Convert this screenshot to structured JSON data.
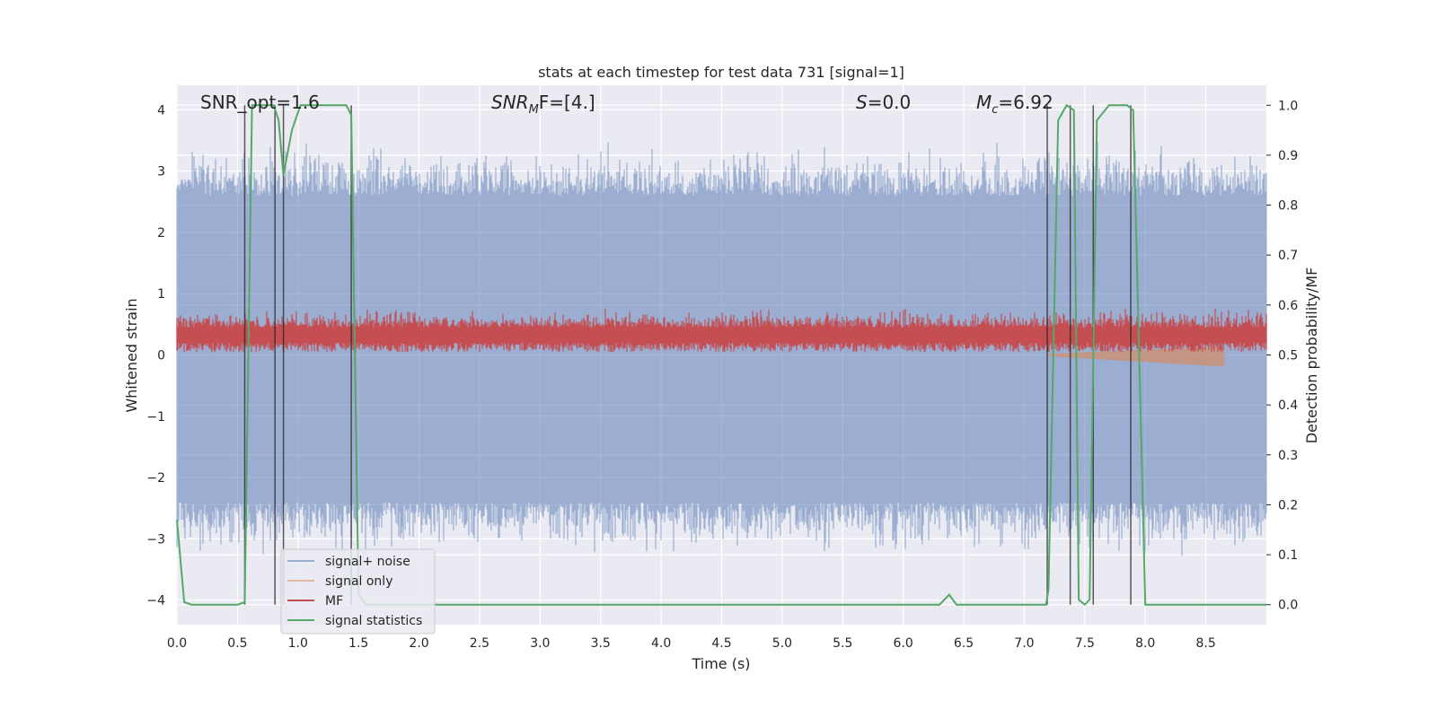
{
  "chart_data": {
    "type": "line",
    "title": "stats at each timestep for test data 731 [signal=1]",
    "xlabel": "Time (s)",
    "ylabel_left": "Whitened strain",
    "ylabel_right": "Detection probability/MF",
    "xlim": [
      0,
      9.0
    ],
    "ylim_left": [
      -4.4,
      4.4
    ],
    "ylim_right": [
      -0.04,
      1.04
    ],
    "x_ticks": [
      "0.0",
      "0.5",
      "1.0",
      "1.5",
      "2.0",
      "2.5",
      "3.0",
      "3.5",
      "4.0",
      "4.5",
      "5.0",
      "5.5",
      "6.0",
      "6.5",
      "7.0",
      "7.5",
      "8.0",
      "8.5"
    ],
    "y_ticks_left": [
      "−4",
      "−3",
      "−2",
      "−1",
      "0",
      "1",
      "2",
      "3",
      "4"
    ],
    "y_ticks_right": [
      "0.0",
      "0.1",
      "0.2",
      "0.3",
      "0.4",
      "0.5",
      "0.6",
      "0.7",
      "0.8",
      "0.9",
      "1.0"
    ],
    "grid": true,
    "legend_position": "lower-left",
    "annotations": {
      "snr_opt": "SNR_opt=1.6",
      "snr_mf_base": "SNR",
      "snr_mf_sub": "M",
      "snr_mf_rest": "F=[4.]",
      "s_label": "S",
      "s_rest": "=0.0",
      "mc_label": "M",
      "mc_sub": "c",
      "mc_rest": "=6.92"
    },
    "series": [
      {
        "name": "signal+ noise",
        "color": "#4c72b0",
        "axis": "left",
        "style": "noise band",
        "envelope": [
          -2.4,
          2.6
        ]
      },
      {
        "name": "signal only",
        "color": "#dd8452",
        "axis": "left",
        "style": "chirp near end",
        "x_range": [
          7.2,
          8.65
        ]
      },
      {
        "name": "MF",
        "color": "#c44e52",
        "axis": "left",
        "style": "noise band",
        "envelope": [
          0.0,
          0.9
        ]
      },
      {
        "name": "signal statistics",
        "color": "#55a868",
        "axis": "right",
        "x": [
          0.0,
          0.06,
          0.12,
          0.5,
          0.56,
          0.62,
          0.7,
          0.8,
          0.84,
          0.88,
          0.95,
          1.02,
          1.1,
          1.4,
          1.44,
          1.5,
          1.56,
          6.3,
          6.38,
          6.44,
          7.18,
          7.2,
          7.28,
          7.35,
          7.41,
          7.45,
          7.5,
          7.54,
          7.6,
          7.7,
          7.85,
          7.9,
          8.0,
          9.0
        ],
        "y": [
          0.17,
          0.005,
          0.0,
          0.0,
          0.005,
          1.0,
          1.0,
          1.0,
          0.97,
          0.86,
          0.95,
          1.0,
          1.0,
          1.0,
          0.98,
          0.02,
          0.0,
          0.0,
          0.02,
          0.0,
          0.0,
          0.03,
          0.97,
          1.0,
          0.99,
          0.01,
          0.0,
          0.01,
          0.97,
          1.0,
          1.0,
          0.99,
          0.0,
          0.0
        ]
      }
    ],
    "vertical_markers": [
      0.56,
      0.81,
      0.88,
      1.44,
      7.19,
      7.38,
      7.57,
      7.88
    ]
  }
}
